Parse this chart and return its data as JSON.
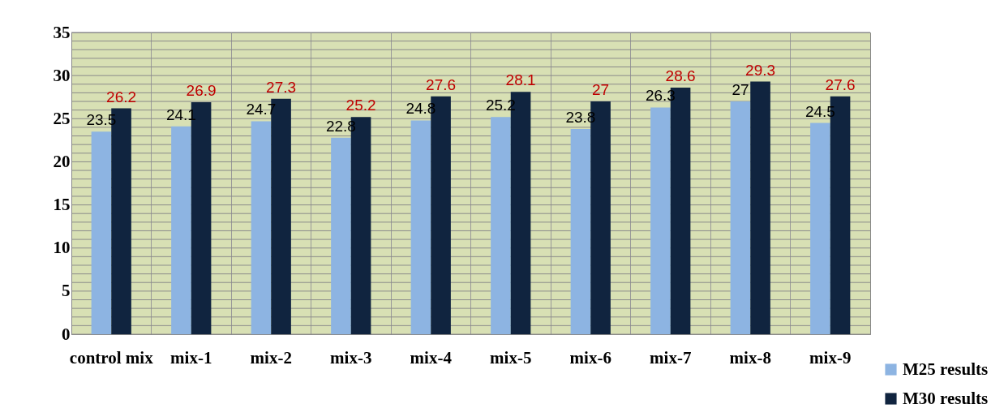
{
  "chart_data": {
    "type": "bar",
    "categories": [
      "control mix",
      "mix-1",
      "mix-2",
      "mix-3",
      "mix-4",
      "mix-5",
      "mix-6",
      "mix-7",
      "mix-8",
      "mix-9"
    ],
    "series": [
      {
        "name": "M25 results",
        "color": "#8db4e2",
        "values": [
          23.5,
          24.1,
          24.7,
          22.8,
          24.8,
          25.2,
          23.8,
          26.3,
          27,
          24.5
        ]
      },
      {
        "name": "M30 results",
        "color": "#10243f",
        "values": [
          26.2,
          26.9,
          27.3,
          25.2,
          27.6,
          28.1,
          27,
          28.6,
          29.3,
          27.6
        ]
      }
    ],
    "ylim": [
      0,
      35
    ],
    "yticks": [
      0,
      {
        "value": 1,
        "label": null
      },
      {
        "value": 2,
        "label": null
      },
      {
        "value": 3,
        "label": null
      },
      {
        "value": 4,
        "label": null
      },
      5,
      {
        "value": 6,
        "label": null
      },
      {
        "value": 7,
        "label": null
      },
      {
        "value": 8,
        "label": null
      },
      {
        "value": 9,
        "label": null
      },
      10,
      {
        "value": 11,
        "label": null
      },
      {
        "value": 12,
        "label": null
      },
      {
        "value": 13,
        "label": null
      },
      {
        "value": 14,
        "label": null
      },
      15,
      {
        "value": 16,
        "label": null
      },
      {
        "value": 17,
        "label": null
      },
      {
        "value": 18,
        "label": null
      },
      {
        "value": 19,
        "label": null
      },
      20,
      {
        "value": 21,
        "label": null
      },
      {
        "value": 22,
        "label": null
      },
      {
        "value": 23,
        "label": null
      },
      {
        "value": 24,
        "label": null
      },
      25,
      {
        "value": 26,
        "label": null
      },
      {
        "value": 27,
        "label": null
      },
      {
        "value": 28,
        "label": null
      },
      {
        "value": 29,
        "label": null
      },
      30,
      {
        "value": 31,
        "label": null
      },
      {
        "value": 32,
        "label": null
      },
      {
        "value": 33,
        "label": null
      },
      {
        "value": 34,
        "label": null
      },
      35
    ],
    "grid": true,
    "data_labels": true,
    "legend": "bottom right"
  }
}
